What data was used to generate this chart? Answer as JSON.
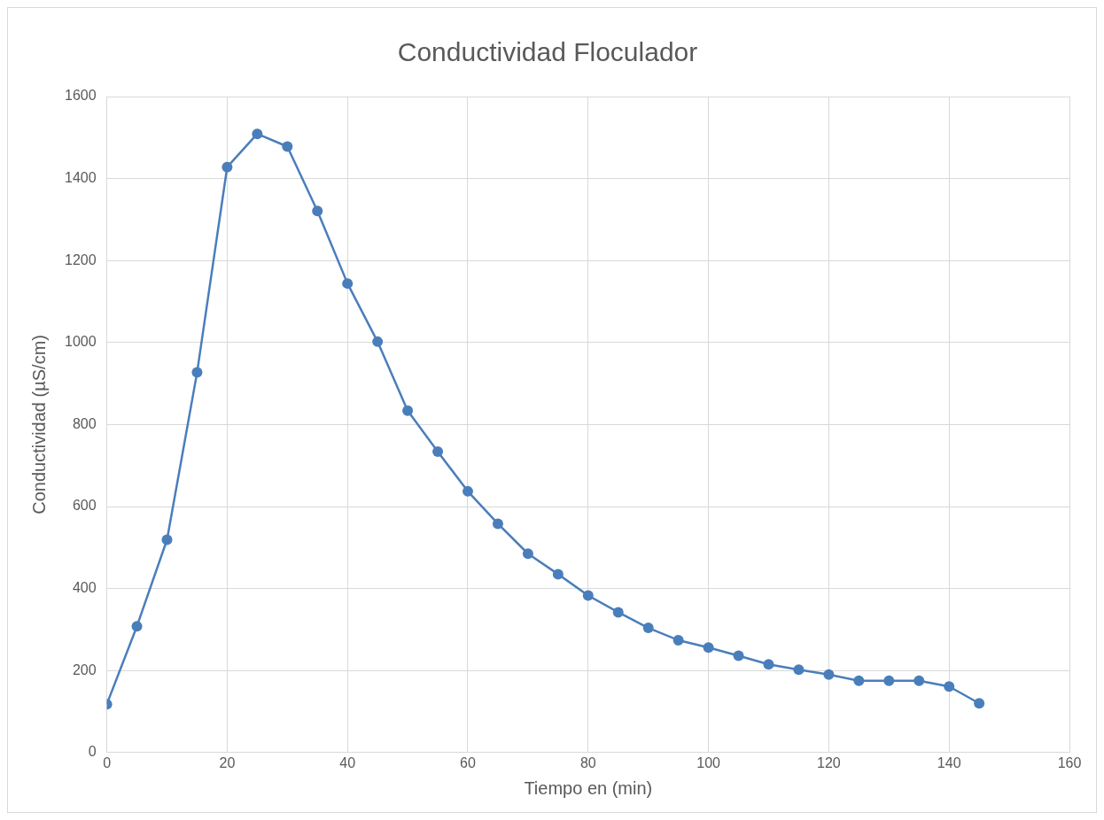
{
  "chart_data": {
    "type": "line",
    "title": "Conductividad Floculador",
    "xlabel": "Tiempo en (min)",
    "ylabel": "Conductividad (µS/cm)",
    "x": [
      0,
      5,
      10,
      15,
      20,
      25,
      30,
      35,
      40,
      45,
      50,
      55,
      60,
      65,
      70,
      75,
      80,
      85,
      90,
      95,
      100,
      105,
      110,
      115,
      120,
      125,
      130,
      135,
      140,
      145
    ],
    "series": [
      {
        "color": "#4a7ebb",
        "values": [
          118,
          308,
          519,
          927,
          1428,
          1509,
          1478,
          1321,
          1144,
          1002,
          834,
          734,
          637,
          558,
          485,
          435,
          383,
          342,
          304,
          274,
          256,
          236,
          215,
          202,
          190,
          175,
          175,
          175,
          161,
          120
        ]
      }
    ],
    "xlim": [
      0,
      160
    ],
    "xticks": [
      0,
      20,
      40,
      60,
      80,
      100,
      120,
      140,
      160
    ],
    "ylim": [
      0,
      1600
    ],
    "yticks": [
      0,
      200,
      400,
      600,
      800,
      1000,
      1200,
      1400,
      1600
    ],
    "grid": true,
    "legend": false,
    "marker": "circle",
    "line_style": "solid"
  }
}
